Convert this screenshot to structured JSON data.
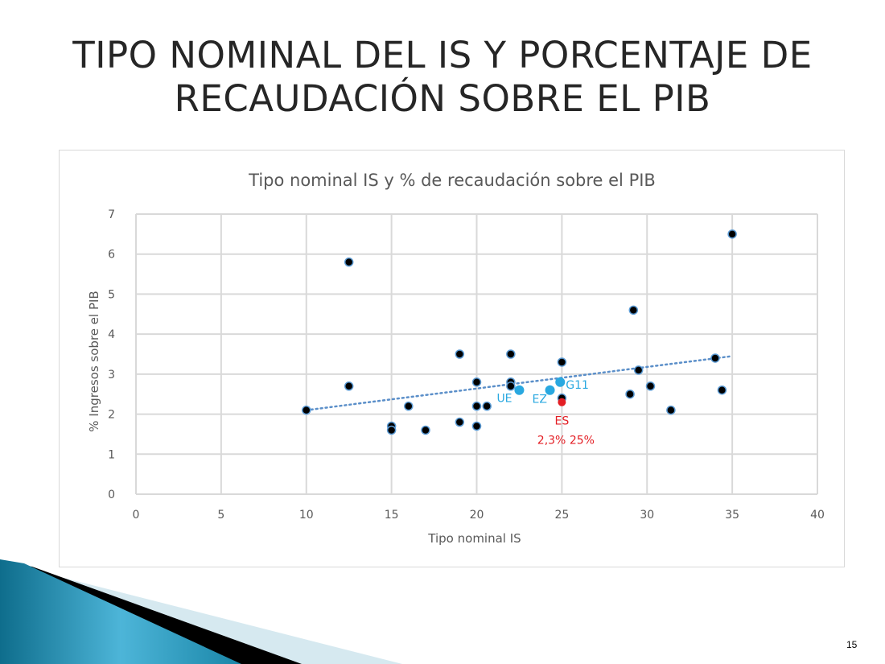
{
  "slide": {
    "title_line1": "TIPO NOMINAL DEL IS Y PORCENTAJE DE",
    "title_line2": "RECAUDACIÓN SOBRE EL PIB",
    "page_number": "15"
  },
  "chart_data": {
    "type": "scatter",
    "title": "Tipo nominal IS y % de recaudación sobre el PIB",
    "xlabel": "Tipo nominal IS",
    "ylabel": "% Ingresos sobre el PIB",
    "xlim": [
      0,
      40
    ],
    "ylim": [
      0,
      7
    ],
    "xticks": [
      "0",
      "5",
      "10",
      "15",
      "20",
      "25",
      "30",
      "35",
      "40"
    ],
    "yticks": [
      "0",
      "1",
      "2",
      "3",
      "4",
      "5",
      "6",
      "7"
    ],
    "grid": true,
    "legend": "none",
    "colors": {
      "points": "#000000",
      "point_outline": "#5b9bd5",
      "highlight": "#29a8e0",
      "spain": "#e31e24",
      "trendline": "#5b8fc9",
      "grid": "#d9d9d9"
    },
    "points": [
      {
        "x": 10,
        "y": 2.1
      },
      {
        "x": 12.5,
        "y": 5.8
      },
      {
        "x": 12.5,
        "y": 2.7
      },
      {
        "x": 15,
        "y": 1.7
      },
      {
        "x": 15,
        "y": 1.6
      },
      {
        "x": 16,
        "y": 2.2
      },
      {
        "x": 17,
        "y": 1.6
      },
      {
        "x": 19,
        "y": 3.5
      },
      {
        "x": 19,
        "y": 1.8
      },
      {
        "x": 20,
        "y": 2.8
      },
      {
        "x": 20,
        "y": 2.2
      },
      {
        "x": 20,
        "y": 1.7
      },
      {
        "x": 20.6,
        "y": 2.2
      },
      {
        "x": 22,
        "y": 3.5
      },
      {
        "x": 22,
        "y": 2.8
      },
      {
        "x": 22,
        "y": 2.7
      },
      {
        "x": 25,
        "y": 3.3
      },
      {
        "x": 25,
        "y": 2.4
      },
      {
        "x": 29,
        "y": 2.5
      },
      {
        "x": 29.2,
        "y": 4.6
      },
      {
        "x": 29.5,
        "y": 3.1
      },
      {
        "x": 30.2,
        "y": 2.7
      },
      {
        "x": 31.4,
        "y": 2.1
      },
      {
        "x": 34,
        "y": 3.4
      },
      {
        "x": 34.4,
        "y": 2.6
      },
      {
        "x": 35,
        "y": 6.5
      }
    ],
    "highlighted": [
      {
        "label": "UE",
        "x": 22.5,
        "y": 2.6
      },
      {
        "label": "EZ",
        "x": 24.3,
        "y": 2.6
      },
      {
        "label": "G11",
        "x": 24.9,
        "y": 2.8
      }
    ],
    "spain": {
      "label": "ES",
      "value_label": "2,3%  25%",
      "x": 25,
      "y": 2.3
    },
    "trendline": {
      "type": "linear",
      "x": [
        10,
        35
      ],
      "y": [
        2.1,
        3.45
      ]
    }
  }
}
